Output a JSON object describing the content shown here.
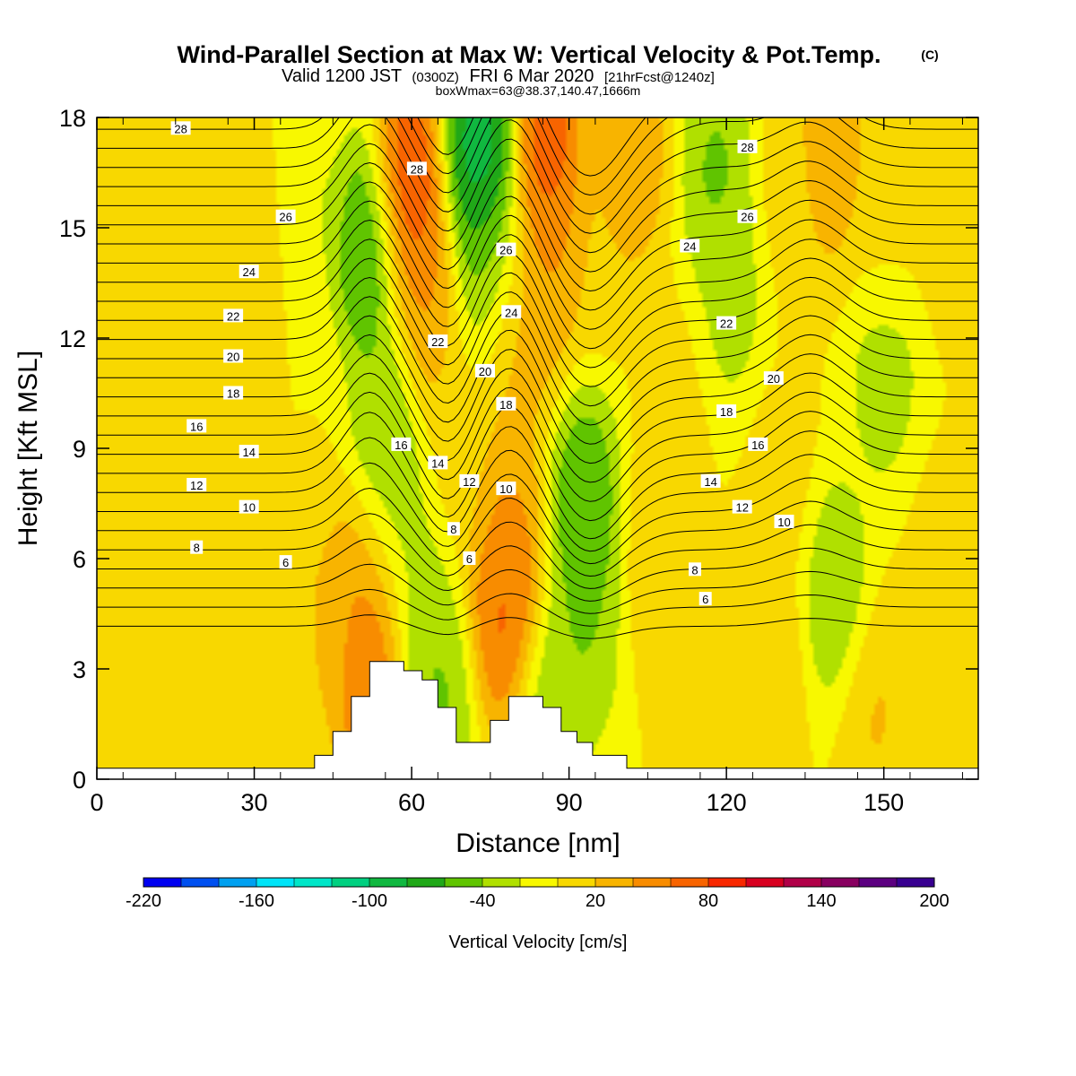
{
  "title": {
    "main": "Wind-Parallel Section at Max W: Vertical Velocity & Pot.Temp.",
    "copyright": "(C)",
    "valid": "Valid 1200 JST",
    "utc": "(0300Z)",
    "date": "FRI 6 Mar 2020",
    "forecast": "[21hrFcst@1240z]",
    "box": "boxWmax=63@38.37,140.47,1666m"
  },
  "chart_data": {
    "type": "heatmap",
    "xlabel": "Distance [nm]",
    "ylabel": "Height [Kft MSL]",
    "xlim": [
      0,
      168
    ],
    "ylim": [
      0,
      18
    ],
    "x_ticks": [
      0,
      30,
      60,
      90,
      120,
      150
    ],
    "y_ticks": [
      0,
      3,
      6,
      9,
      12,
      15,
      18
    ],
    "colorbar": {
      "title": "Vertical Velocity [cm/s]",
      "min": -220,
      "max": 200,
      "step": 20,
      "tick_labels": [
        "-220",
        "-160",
        "-100",
        "-40",
        "20",
        "80",
        "140",
        "200"
      ],
      "colors": [
        "#0000f0",
        "#0050f0",
        "#00a0f0",
        "#00e4f8",
        "#00e6c8",
        "#00d080",
        "#10b840",
        "#20a818",
        "#60c400",
        "#b0e000",
        "#f8f800",
        "#f8d800",
        "#f8b400",
        "#f88c00",
        "#f86400",
        "#f82800",
        "#d80020",
        "#b00048",
        "#880060",
        "#5c0080",
        "#380090"
      ]
    },
    "velocity_features": [
      {
        "x": 0,
        "z": 9,
        "w": 10
      },
      {
        "x": 15,
        "z": 10,
        "w": 10
      },
      {
        "x": 22,
        "z": 13,
        "w": 25
      },
      {
        "x": 30,
        "z": 15,
        "w": 18
      },
      {
        "x": 25,
        "z": 3,
        "w": 22
      },
      {
        "x": 45,
        "z": 4.5,
        "w": 28
      },
      {
        "x": 52,
        "z": 2.8,
        "w": 80
      },
      {
        "x": 52,
        "z": 5,
        "w": 55
      },
      {
        "x": 40,
        "z": 16,
        "w": -25
      },
      {
        "x": 52,
        "z": 14.5,
        "w": -85
      },
      {
        "x": 55,
        "z": 10,
        "w": -50
      },
      {
        "x": 56,
        "z": 7,
        "w": -40
      },
      {
        "x": 59,
        "z": 16,
        "w": 110
      },
      {
        "x": 62,
        "z": 13,
        "w": 50
      },
      {
        "x": 62,
        "z": 4,
        "w": -40
      },
      {
        "x": 65,
        "z": 2,
        "w": -55
      },
      {
        "x": 70,
        "z": 9,
        "w": 10
      },
      {
        "x": 73,
        "z": 17,
        "w": -120
      },
      {
        "x": 75,
        "z": 14,
        "w": -50
      },
      {
        "x": 78,
        "z": 4.5,
        "w": 85
      },
      {
        "x": 78,
        "z": 7,
        "w": 50
      },
      {
        "x": 80,
        "z": 12,
        "w": 35
      },
      {
        "x": 86,
        "z": 17,
        "w": 95
      },
      {
        "x": 86,
        "z": 14,
        "w": 45
      },
      {
        "x": 86,
        "z": 2,
        "w": -45
      },
      {
        "x": 93,
        "z": 7.5,
        "w": -75
      },
      {
        "x": 93,
        "z": 4,
        "w": -50
      },
      {
        "x": 96,
        "z": 15,
        "w": 20
      },
      {
        "x": 102,
        "z": 17,
        "w": 45
      },
      {
        "x": 107,
        "z": 6,
        "w": 18
      },
      {
        "x": 110,
        "z": 10,
        "w": 10
      },
      {
        "x": 118,
        "z": 16.5,
        "w": -55
      },
      {
        "x": 121,
        "z": 13,
        "w": -35
      },
      {
        "x": 128,
        "z": 3,
        "w": 25
      },
      {
        "x": 130,
        "z": 8,
        "w": 12
      },
      {
        "x": 133,
        "z": 16,
        "w": 15
      },
      {
        "x": 140,
        "z": 17,
        "w": 45
      },
      {
        "x": 150,
        "z": 11,
        "w": -40
      },
      {
        "x": 150,
        "z": 15,
        "w": 10
      },
      {
        "x": 141,
        "z": 5,
        "w": -50
      },
      {
        "x": 148,
        "z": 2,
        "w": 28
      },
      {
        "x": 163,
        "z": 16,
        "w": 25
      },
      {
        "x": 163,
        "z": 2,
        "w": 12
      },
      {
        "x": 160,
        "z": 6,
        "w": 5
      }
    ],
    "theta_contours": {
      "interval": 1,
      "min": 3,
      "max": 30,
      "labels": [
        {
          "text": "28",
          "x": 16,
          "z": 17.7
        },
        {
          "text": "26",
          "x": 36,
          "z": 15.3
        },
        {
          "text": "24",
          "x": 29,
          "z": 13.8
        },
        {
          "text": "22",
          "x": 26,
          "z": 12.6
        },
        {
          "text": "20",
          "x": 26,
          "z": 11.5
        },
        {
          "text": "18",
          "x": 26,
          "z": 10.5
        },
        {
          "text": "16",
          "x": 19,
          "z": 9.6
        },
        {
          "text": "14",
          "x": 29,
          "z": 8.9
        },
        {
          "text": "12",
          "x": 19,
          "z": 8.0
        },
        {
          "text": "10",
          "x": 29,
          "z": 7.4
        },
        {
          "text": "8",
          "x": 19,
          "z": 6.3
        },
        {
          "text": "6",
          "x": 36,
          "z": 5.9
        },
        {
          "text": "28",
          "x": 61,
          "z": 16.6
        },
        {
          "text": "26",
          "x": 78,
          "z": 14.4
        },
        {
          "text": "24",
          "x": 79,
          "z": 12.7
        },
        {
          "text": "22",
          "x": 65,
          "z": 11.9
        },
        {
          "text": "20",
          "x": 74,
          "z": 11.1
        },
        {
          "text": "18",
          "x": 78,
          "z": 10.2
        },
        {
          "text": "16",
          "x": 58,
          "z": 9.1
        },
        {
          "text": "14",
          "x": 65,
          "z": 8.6
        },
        {
          "text": "12",
          "x": 71,
          "z": 8.1
        },
        {
          "text": "10",
          "x": 78,
          "z": 7.9
        },
        {
          "text": "8",
          "x": 68,
          "z": 6.8
        },
        {
          "text": "6",
          "x": 71,
          "z": 6.0
        },
        {
          "text": "28",
          "x": 124,
          "z": 17.2
        },
        {
          "text": "26",
          "x": 124,
          "z": 15.3
        },
        {
          "text": "24",
          "x": 113,
          "z": 14.5
        },
        {
          "text": "22",
          "x": 120,
          "z": 12.4
        },
        {
          "text": "20",
          "x": 129,
          "z": 10.9
        },
        {
          "text": "18",
          "x": 120,
          "z": 10.0
        },
        {
          "text": "16",
          "x": 126,
          "z": 9.1
        },
        {
          "text": "14",
          "x": 117,
          "z": 8.1
        },
        {
          "text": "12",
          "x": 123,
          "z": 7.4
        },
        {
          "text": "10",
          "x": 131,
          "z": 7.0
        },
        {
          "text": "8",
          "x": 114,
          "z": 5.7
        },
        {
          "text": "6",
          "x": 116,
          "z": 4.9
        }
      ]
    },
    "terrain": [
      [
        0,
        0.3
      ],
      [
        41.5,
        0.3
      ],
      [
        41.5,
        0.65
      ],
      [
        45,
        0.65
      ],
      [
        45,
        1.3
      ],
      [
        48.5,
        1.3
      ],
      [
        48.5,
        2.25
      ],
      [
        52,
        2.25
      ],
      [
        52,
        3.2
      ],
      [
        58.5,
        3.2
      ],
      [
        58.5,
        2.95
      ],
      [
        62,
        2.95
      ],
      [
        62,
        2.7
      ],
      [
        65,
        2.7
      ],
      [
        65,
        1.95
      ],
      [
        68.5,
        1.95
      ],
      [
        68.5,
        1.0
      ],
      [
        75,
        1.0
      ],
      [
        75,
        1.6
      ],
      [
        78.5,
        1.6
      ],
      [
        78.5,
        2.25
      ],
      [
        85,
        2.25
      ],
      [
        85,
        1.95
      ],
      [
        88.5,
        1.95
      ],
      [
        88.5,
        1.3
      ],
      [
        91.5,
        1.3
      ],
      [
        91.5,
        1.0
      ],
      [
        94.5,
        1.0
      ],
      [
        94.5,
        0.65
      ],
      [
        101,
        0.65
      ],
      [
        101,
        0.3
      ],
      [
        168,
        0.3
      ]
    ]
  }
}
